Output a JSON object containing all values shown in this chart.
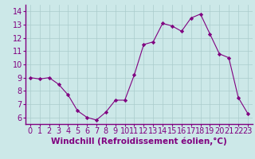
{
  "x": [
    0,
    1,
    2,
    3,
    4,
    5,
    6,
    7,
    8,
    9,
    10,
    11,
    12,
    13,
    14,
    15,
    16,
    17,
    18,
    19,
    20,
    21,
    22,
    23
  ],
  "y": [
    9.0,
    8.9,
    9.0,
    8.5,
    7.7,
    6.5,
    6.0,
    5.8,
    6.4,
    7.3,
    7.3,
    9.2,
    11.5,
    11.7,
    13.1,
    12.9,
    12.5,
    13.5,
    13.8,
    12.3,
    10.8,
    10.5,
    7.5,
    6.3
  ],
  "line_color": "#800080",
  "marker_color": "#800080",
  "bg_color": "#cce8e8",
  "grid_color": "#aacccc",
  "axis_color": "#800080",
  "xlabel": "Windchill (Refroidissement éolien,°C)",
  "xlabel_fontsize": 7.5,
  "tick_fontsize": 7,
  "ylim": [
    5.5,
    14.5
  ],
  "xlim": [
    -0.5,
    23.5
  ],
  "yticks": [
    6,
    7,
    8,
    9,
    10,
    11,
    12,
    13,
    14
  ],
  "xticks": [
    0,
    1,
    2,
    3,
    4,
    5,
    6,
    7,
    8,
    9,
    10,
    11,
    12,
    13,
    14,
    15,
    16,
    17,
    18,
    19,
    20,
    21,
    22,
    23
  ]
}
